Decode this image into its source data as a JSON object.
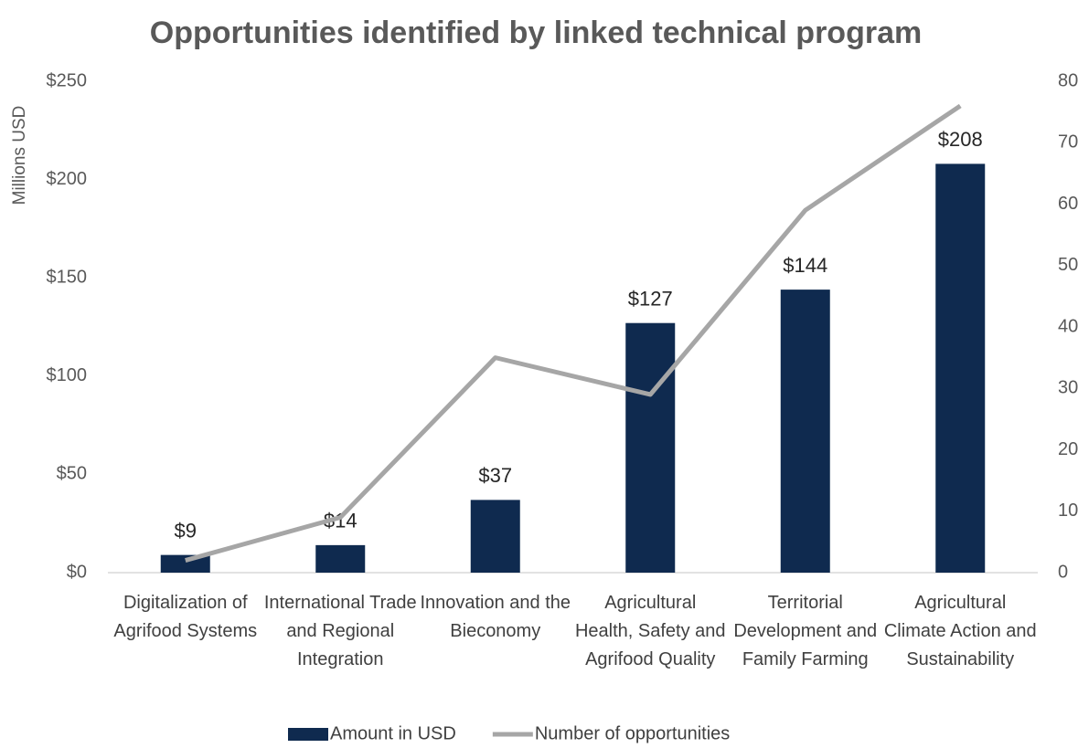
{
  "chart_data": {
    "type": "bar_line",
    "title": "Opportunities identified by linked technical program",
    "y_label": "Millions USD",
    "categories": [
      "Digitalization of Agrifood Systems",
      "International Trade and Regional Integration",
      "Innovation and the Bieconomy",
      "Agricultural Health, Safety and Agrifood Quality",
      "Territorial Development and Family Farming",
      "Agricultural Climate Action and Sustainability"
    ],
    "series": [
      {
        "name": "Amount in USD",
        "color": "#0f2a4f",
        "type": "bar",
        "values": [
          9,
          14,
          37,
          127,
          144,
          208
        ],
        "value_labels": [
          "$9",
          "$14",
          "$37",
          "$127",
          "$144",
          "$208"
        ]
      },
      {
        "name": "Number of opportunities",
        "color": "#a6a6a6",
        "type": "line",
        "axis": "y2",
        "values": [
          2,
          9,
          35,
          29,
          59,
          76
        ]
      }
    ],
    "ylim": [
      0,
      250
    ],
    "yticks": [
      {
        "value": 0,
        "label": "$0"
      },
      {
        "value": 50,
        "label": "$50"
      },
      {
        "value": 100,
        "label": "$100"
      },
      {
        "value": 150,
        "label": "$150"
      },
      {
        "value": 200,
        "label": "$200"
      },
      {
        "value": 250,
        "label": "$250"
      }
    ],
    "y2lim": [
      0,
      80
    ],
    "y2ticks": [
      0,
      10,
      20,
      30,
      40,
      50,
      60,
      70,
      80
    ],
    "legend": "bottom"
  }
}
